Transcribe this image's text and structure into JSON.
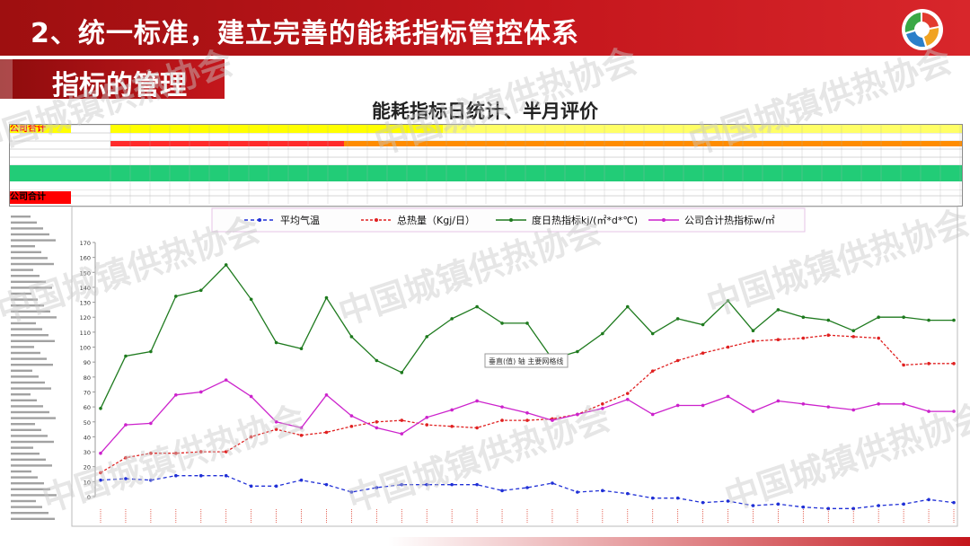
{
  "header": {
    "title": "2、统一标准，建立完善的能耗指标管控体系",
    "section_label": "指标的管理",
    "watermark": "中国城镇供热协会"
  },
  "sheet": {
    "company_label_top": "公司合计",
    "company_label_bottom": "公司合计"
  },
  "chart_data": {
    "type": "line",
    "title": "能耗指标日统计、半月评价",
    "ylim": [
      0,
      170
    ],
    "yticks": [
      0,
      10,
      20,
      30,
      40,
      50,
      60,
      70,
      80,
      90,
      100,
      110,
      120,
      130,
      140,
      150,
      160,
      170
    ],
    "legend_placement": "top",
    "grid": false,
    "tooltip": "垂直(值) 轴 主要网格线",
    "series": [
      {
        "name": "平均气温",
        "color": "#1f2fd6",
        "values": [
          11,
          12,
          11,
          14,
          14,
          14,
          7,
          7,
          11,
          8,
          3,
          6,
          8,
          8,
          8,
          8,
          4,
          6,
          9,
          3,
          4,
          2,
          -1,
          -1,
          -4,
          -3,
          -6,
          -5,
          -7,
          -8,
          -8,
          -6,
          -5,
          -2,
          -4
        ]
      },
      {
        "name": "总热量（Kgj/日）",
        "color": "#e02020",
        "values": [
          16,
          26,
          29,
          29,
          30,
          30,
          40,
          45,
          41,
          43,
          47,
          50,
          51,
          48,
          47,
          46,
          51,
          51,
          52,
          55,
          62,
          69,
          84,
          91,
          96,
          100,
          104,
          105,
          106,
          108,
          107,
          106,
          88,
          89,
          89
        ]
      },
      {
        "name": "度日热指标kj/(㎡*d*℃)",
        "color": "#1e7a1e",
        "values": [
          59,
          94,
          97,
          134,
          138,
          155,
          132,
          103,
          99,
          133,
          107,
          91,
          83,
          107,
          119,
          127,
          116,
          116,
          92,
          97,
          109,
          127,
          109,
          119,
          115,
          131,
          111,
          125,
          120,
          118,
          111,
          120,
          120,
          118,
          118
        ]
      },
      {
        "name": "公司合计热指标w/㎡",
        "color": "#cc22cc",
        "values": [
          29,
          48,
          49,
          68,
          70,
          78,
          67,
          50,
          46,
          68,
          54,
          46,
          42,
          53,
          58,
          64,
          60,
          56,
          51,
          55,
          59,
          65,
          55,
          61,
          61,
          67,
          57,
          64,
          62,
          60,
          58,
          62,
          62,
          57,
          57
        ]
      }
    ]
  }
}
